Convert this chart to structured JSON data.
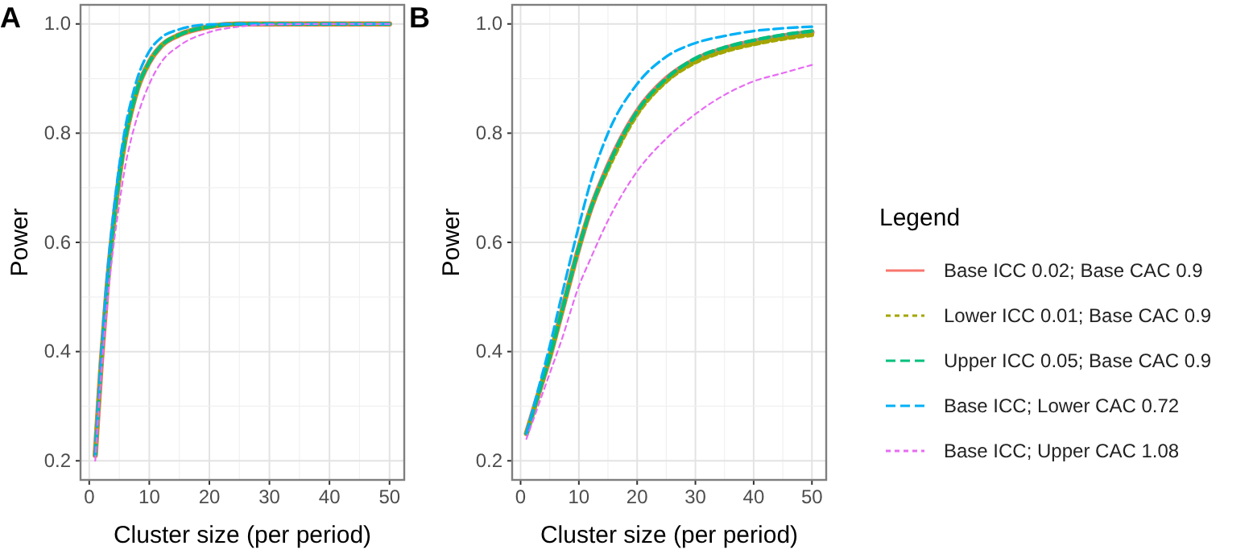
{
  "chart_data": [
    {
      "type": "line",
      "title": "A",
      "xlabel": "Cluster size (per period)",
      "ylabel": "Power",
      "x": [
        1,
        2,
        3,
        4,
        5,
        6,
        7,
        8,
        10,
        12,
        15,
        20,
        25,
        30,
        40,
        50
      ],
      "xlim": [
        -1.45,
        52.45
      ],
      "ylim": [
        0.165,
        1.035
      ],
      "xticks": [
        0,
        10,
        20,
        30,
        40,
        50
      ],
      "yticks": [
        {
          "value": 0.2,
          "label": "0.2"
        },
        {
          "value": 0.4,
          "label": "0.4"
        },
        {
          "value": 0.6,
          "label": "0.6"
        },
        {
          "value": 0.8,
          "label": "0.8"
        },
        {
          "value": 1.0,
          "label": "1.0"
        }
      ],
      "grid": true,
      "legend": false,
      "series": [
        {
          "color": "#f8766d",
          "line_style": "solid",
          "values": [
            0.21,
            0.38,
            0.52,
            0.63,
            0.72,
            0.79,
            0.84,
            0.88,
            0.93,
            0.96,
            0.98,
            0.995,
            1.0,
            1.0,
            1.0,
            1.0
          ]
        },
        {
          "color": "#a3a500",
          "line_style": "dotted",
          "values": [
            0.21,
            0.38,
            0.52,
            0.63,
            0.72,
            0.79,
            0.84,
            0.88,
            0.93,
            0.96,
            0.98,
            0.995,
            1.0,
            1.0,
            1.0,
            1.0
          ]
        },
        {
          "color": "#00bf7d",
          "line_style": "dashed",
          "values": [
            0.21,
            0.38,
            0.52,
            0.63,
            0.72,
            0.79,
            0.84,
            0.88,
            0.93,
            0.96,
            0.98,
            0.995,
            1.0,
            1.0,
            1.0,
            1.0
          ]
        },
        {
          "color": "#00b0f6",
          "line_style": "dashed",
          "values": [
            0.21,
            0.39,
            0.54,
            0.65,
            0.74,
            0.81,
            0.86,
            0.9,
            0.95,
            0.975,
            0.99,
            0.999,
            1.0,
            1.0,
            1.0,
            1.0
          ]
        },
        {
          "color": "#e76bf3",
          "line_style": "dotted",
          "values": [
            0.2,
            0.36,
            0.49,
            0.59,
            0.67,
            0.74,
            0.79,
            0.83,
            0.89,
            0.93,
            0.96,
            0.985,
            0.995,
            0.999,
            1.0,
            1.0
          ]
        }
      ]
    },
    {
      "type": "line",
      "title": "B",
      "xlabel": "Cluster size (per period)",
      "ylabel": "Power",
      "legend_title": "Legend",
      "x": [
        1,
        3,
        5,
        7,
        10,
        12,
        15,
        20,
        25,
        30,
        35,
        40,
        45,
        50
      ],
      "xlim": [
        -1.45,
        52.45
      ],
      "ylim": [
        0.165,
        1.035
      ],
      "xticks": [
        0,
        10,
        20,
        30,
        40,
        50
      ],
      "yticks": [
        {
          "value": 0.2,
          "label": "0.2"
        },
        {
          "value": 0.4,
          "label": "0.4"
        },
        {
          "value": 0.6,
          "label": "0.6"
        },
        {
          "value": 0.8,
          "label": "0.8"
        },
        {
          "value": 1.0,
          "label": "1.0"
        }
      ],
      "grid": true,
      "legend": "right",
      "series": [
        {
          "name": "Base ICC 0.02; Base CAC 0.9",
          "color": "#f8766d",
          "line_style": "solid",
          "values": [
            0.25,
            0.32,
            0.39,
            0.47,
            0.59,
            0.66,
            0.74,
            0.84,
            0.9,
            0.935,
            0.955,
            0.968,
            0.978,
            0.985
          ]
        },
        {
          "name": "Lower ICC 0.01; Base CAC 0.9",
          "color": "#a3a500",
          "line_style": "dotted",
          "values": [
            0.25,
            0.32,
            0.39,
            0.47,
            0.59,
            0.66,
            0.735,
            0.835,
            0.895,
            0.93,
            0.95,
            0.963,
            0.973,
            0.98
          ]
        },
        {
          "name": "Upper ICC 0.05; Base CAC 0.9",
          "color": "#00bf7d",
          "line_style": "dashed",
          "values": [
            0.25,
            0.32,
            0.39,
            0.47,
            0.59,
            0.66,
            0.74,
            0.84,
            0.9,
            0.937,
            0.957,
            0.97,
            0.98,
            0.987
          ]
        },
        {
          "name": "Base ICC; Lower CAC 0.72",
          "color": "#00b0f6",
          "line_style": "dashed",
          "values": [
            0.25,
            0.33,
            0.41,
            0.5,
            0.63,
            0.71,
            0.8,
            0.89,
            0.94,
            0.965,
            0.978,
            0.987,
            0.992,
            0.995
          ]
        },
        {
          "name": "Base ICC; Upper CAC 1.08",
          "color": "#e76bf3",
          "line_style": "dotted",
          "values": [
            0.24,
            0.3,
            0.36,
            0.42,
            0.52,
            0.57,
            0.64,
            0.73,
            0.79,
            0.835,
            0.87,
            0.895,
            0.91,
            0.925
          ]
        }
      ]
    }
  ]
}
